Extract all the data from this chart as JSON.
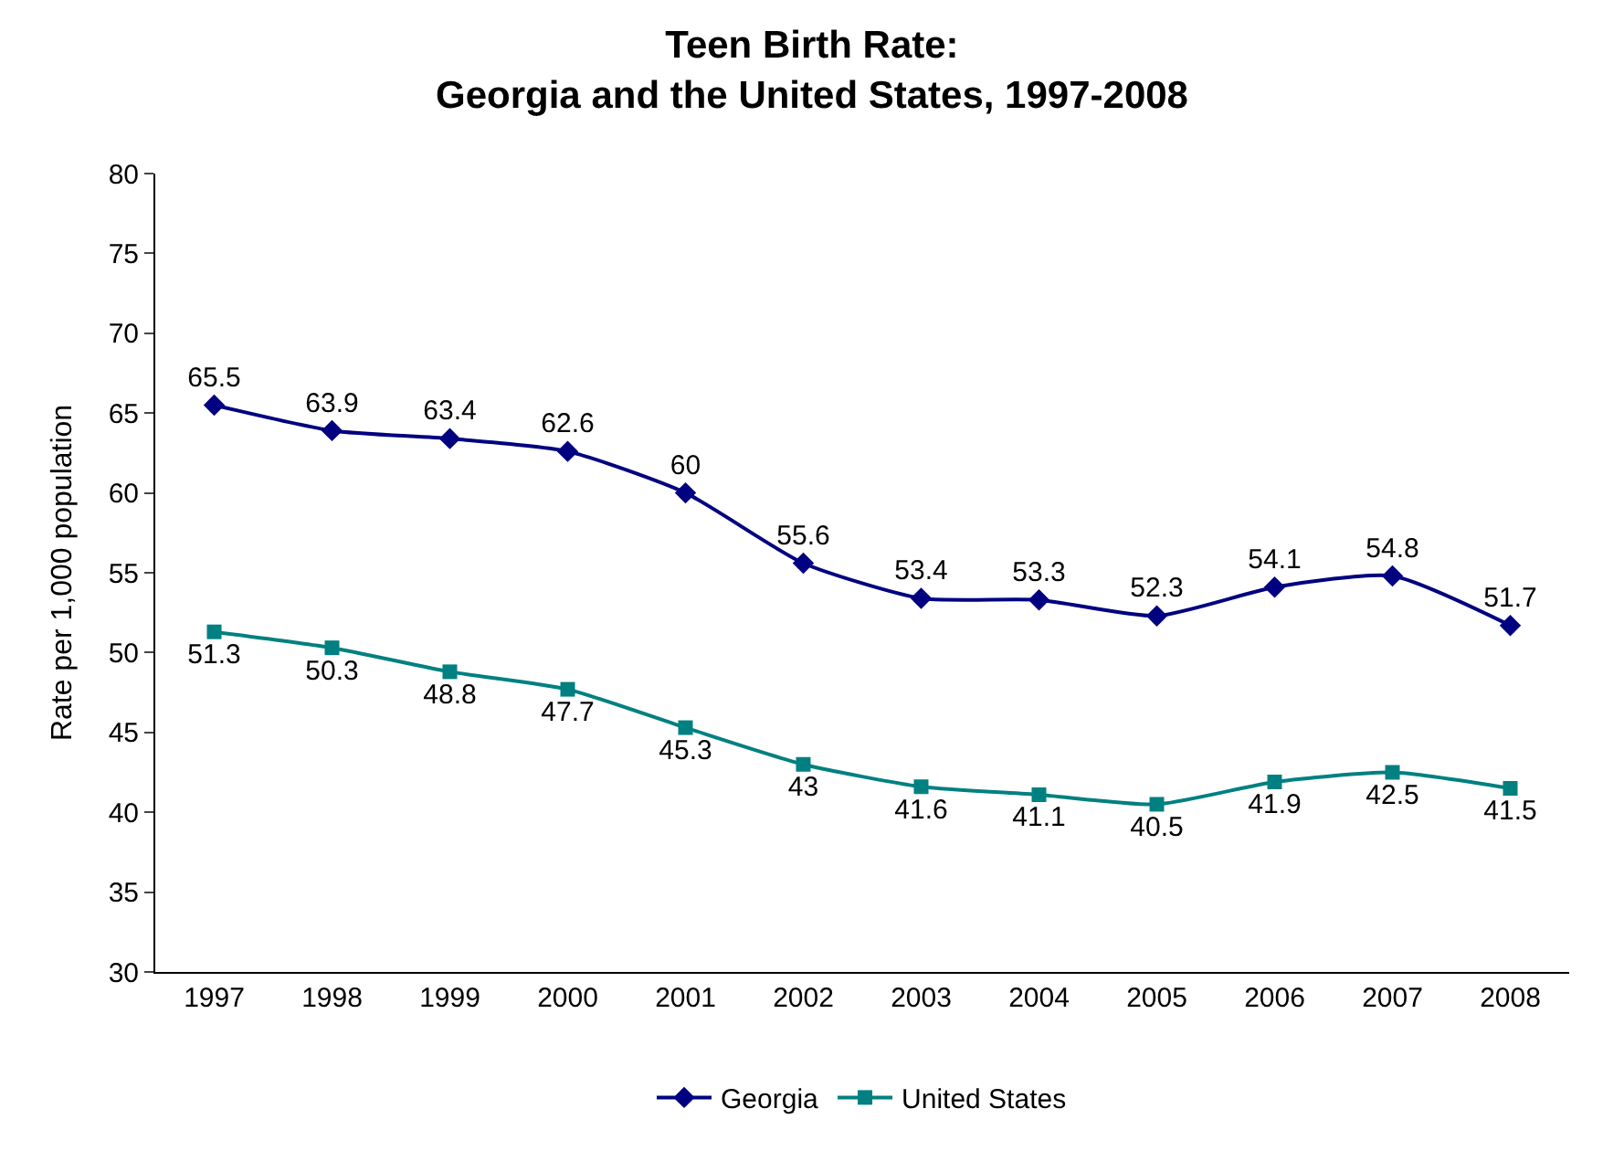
{
  "chart_data": {
    "type": "line",
    "title": "Teen Birth Rate:\nGeorgia and the United States, 1997-2008",
    "ylabel": "Rate per 1,000 population",
    "categories": [
      "1997",
      "1998",
      "1999",
      "2000",
      "2001",
      "2002",
      "2003",
      "2004",
      "2005",
      "2006",
      "2007",
      "2008"
    ],
    "series": [
      {
        "name": "Georgia",
        "color": "#000080",
        "marker": "diamond",
        "values": [
          65.5,
          63.9,
          63.4,
          62.6,
          60,
          55.6,
          53.4,
          53.3,
          52.3,
          54.1,
          54.8,
          51.7
        ]
      },
      {
        "name": "United States",
        "color": "#008080",
        "marker": "square",
        "values": [
          51.3,
          50.3,
          48.8,
          47.7,
          45.3,
          43,
          41.6,
          41.1,
          40.5,
          41.9,
          42.5,
          41.5
        ]
      }
    ],
    "ylim": [
      30,
      80
    ],
    "yticks": [
      30,
      35,
      40,
      45,
      50,
      55,
      60,
      65,
      70,
      75,
      80
    ],
    "grid": false,
    "legend": "bottom",
    "data_labels": true,
    "line_style": "solid"
  }
}
